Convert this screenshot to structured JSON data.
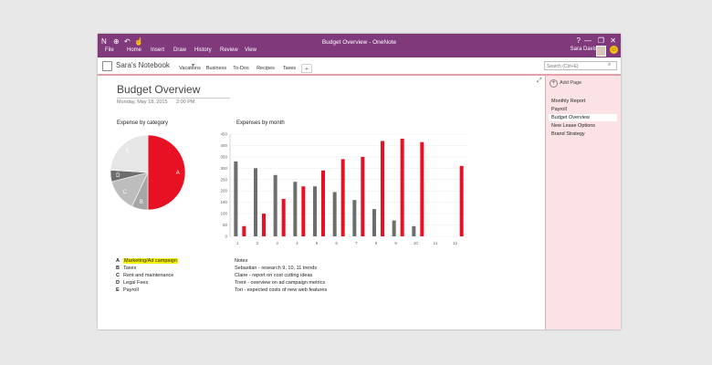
{
  "window": {
    "title": "Budget Overview - OneNote"
  },
  "titlebar": {
    "icons": [
      "onenote-icon",
      "back-icon",
      "undo-icon",
      "touch-icon"
    ],
    "help": "?",
    "minimize": "—",
    "restore": "❐",
    "close": "✕"
  },
  "menu": [
    "File",
    "Home",
    "Insert",
    "Draw",
    "History",
    "Review",
    "View"
  ],
  "user": {
    "name": "Sara Davis"
  },
  "notebook": {
    "name": "Sara's Notebook"
  },
  "sections": [
    {
      "label": "Vacations",
      "color": "#b5e3a6"
    },
    {
      "label": "Business",
      "color": "#f2a7b0"
    },
    {
      "label": "To-Dos",
      "color": "#f9d77e"
    },
    {
      "label": "Recipes",
      "color": "#f7c3a0"
    },
    {
      "label": "Taxes",
      "color": "#a6c8f0"
    },
    {
      "label": "+",
      "color": "#ffffff"
    }
  ],
  "search": {
    "placeholder": "Search (Ctrl+E)"
  },
  "page": {
    "title": "Budget Overview",
    "date": "Monday, May 18, 2015",
    "time": "2:00 PM"
  },
  "pie_title": "Expense by category",
  "bar_title": "Expenses by month",
  "legend": [
    {
      "key": "A",
      "label": "Marketing/Ad campaign",
      "highlight": true
    },
    {
      "key": "B",
      "label": "Taxes",
      "highlight": false
    },
    {
      "key": "C",
      "label": "Rent and maintenance",
      "highlight": false
    },
    {
      "key": "D",
      "label": "Legal Fees",
      "highlight": false
    },
    {
      "key": "E",
      "label": "Payroll",
      "highlight": false
    }
  ],
  "notes": {
    "heading": "Notes",
    "lines": [
      "Sebastian - research 9, 10, 11 trends",
      "Claire - report on cost cutting ideas",
      "Trent - overview on ad campaign metrics",
      "Tori - expected costs of new web features"
    ]
  },
  "pages_pane": {
    "add_label": "Add Page",
    "items": [
      "Monthly Report",
      "Payroll",
      "Budget Overview",
      "New Lease Options",
      "Brand Strategy"
    ],
    "active": 2
  },
  "chart_data": [
    {
      "type": "pie",
      "title": "Expense by category",
      "categories": [
        "A",
        "B",
        "C",
        "D",
        "E"
      ],
      "values": [
        50,
        7,
        14,
        5,
        24
      ],
      "colors": [
        "#e81123",
        "#a6a6a6",
        "#bdbdbd",
        "#6d6d6d",
        "#e6e6e6"
      ]
    },
    {
      "type": "bar",
      "title": "Expenses by month",
      "categories": [
        "1",
        "2",
        "3",
        "4",
        "5",
        "6",
        "7",
        "8",
        "9",
        "10",
        "11",
        "12"
      ],
      "ylim": [
        0,
        450
      ],
      "yticks": [
        "450",
        "400",
        "350",
        "300",
        "250",
        "200",
        "150",
        "100",
        "50",
        "0"
      ],
      "grid": true,
      "series": [
        {
          "values": [
            330,
            300,
            270,
            240,
            220,
            195,
            160,
            120,
            70,
            45,
            0,
            0
          ],
          "color": "#6d6d6d"
        },
        {
          "values": [
            45,
            100,
            165,
            220,
            290,
            340,
            350,
            420,
            430,
            415,
            0,
            310
          ],
          "color": "#e81123"
        }
      ]
    }
  ]
}
